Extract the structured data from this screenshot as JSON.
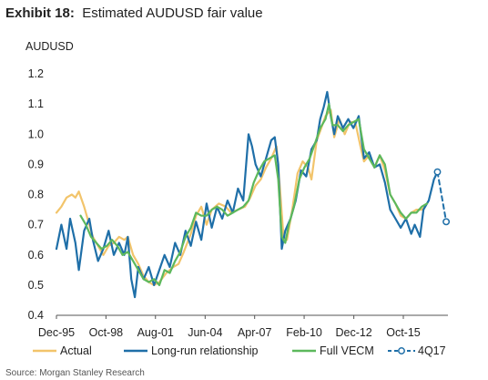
{
  "header": {
    "exhibit": "Exhibit 18:",
    "title": "Estimated AUDUSD fair value"
  },
  "footer": {
    "source": "Source: Morgan Stanley Research"
  },
  "chart_data": {
    "type": "line",
    "title": "Estimated AUDUSD fair value",
    "ylabel": "AUDUSD",
    "xlabel": "",
    "ylim": [
      0.4,
      1.2
    ],
    "yticks": [
      "0.4",
      "0.5",
      "0.6",
      "0.7",
      "0.8",
      "0.9",
      "1.0",
      "1.1",
      "1.2"
    ],
    "xlim": [
      1995.92,
      2018.3
    ],
    "xticks": [
      {
        "label": "Dec-95",
        "x": 1995.92
      },
      {
        "label": "Oct-98",
        "x": 1998.75
      },
      {
        "label": "Aug-01",
        "x": 2001.58
      },
      {
        "label": "Jun-04",
        "x": 2004.42
      },
      {
        "label": "Apr-07",
        "x": 2007.25
      },
      {
        "label": "Feb-10",
        "x": 2010.08
      },
      {
        "label": "Dec-12",
        "x": 2012.92
      },
      {
        "label": "Oct-15",
        "x": 2015.75
      }
    ],
    "grid": false,
    "legend": "bottom",
    "series": [
      {
        "name": "Actual",
        "color": "#F2C46B",
        "style": "solid",
        "points": [
          [
            1995.92,
            0.74
          ],
          [
            1996.2,
            0.76
          ],
          [
            1996.5,
            0.79
          ],
          [
            1996.8,
            0.8
          ],
          [
            1997.0,
            0.79
          ],
          [
            1997.2,
            0.81
          ],
          [
            1997.5,
            0.76
          ],
          [
            1997.8,
            0.7
          ],
          [
            1998.0,
            0.66
          ],
          [
            1998.3,
            0.63
          ],
          [
            1998.6,
            0.6
          ],
          [
            1998.9,
            0.63
          ],
          [
            1999.2,
            0.64
          ],
          [
            1999.5,
            0.66
          ],
          [
            1999.8,
            0.65
          ],
          [
            2000.0,
            0.66
          ],
          [
            2000.3,
            0.6
          ],
          [
            2000.6,
            0.57
          ],
          [
            2000.9,
            0.53
          ],
          [
            2001.2,
            0.51
          ],
          [
            2001.5,
            0.5
          ],
          [
            2001.8,
            0.51
          ],
          [
            2002.2,
            0.54
          ],
          [
            2002.6,
            0.56
          ],
          [
            2002.9,
            0.57
          ],
          [
            2003.2,
            0.61
          ],
          [
            2003.6,
            0.67
          ],
          [
            2003.9,
            0.73
          ],
          [
            2004.2,
            0.76
          ],
          [
            2004.5,
            0.7
          ],
          [
            2004.8,
            0.75
          ],
          [
            2005.2,
            0.77
          ],
          [
            2005.6,
            0.76
          ],
          [
            2005.9,
            0.74
          ],
          [
            2006.3,
            0.75
          ],
          [
            2006.7,
            0.76
          ],
          [
            2007.0,
            0.79
          ],
          [
            2007.3,
            0.83
          ],
          [
            2007.6,
            0.85
          ],
          [
            2007.9,
            0.89
          ],
          [
            2008.2,
            0.92
          ],
          [
            2008.5,
            0.96
          ],
          [
            2008.7,
            0.82
          ],
          [
            2008.9,
            0.66
          ],
          [
            2009.1,
            0.65
          ],
          [
            2009.4,
            0.75
          ],
          [
            2009.7,
            0.87
          ],
          [
            2010.0,
            0.91
          ],
          [
            2010.3,
            0.89
          ],
          [
            2010.5,
            0.85
          ],
          [
            2010.8,
            0.98
          ],
          [
            2011.0,
            1.01
          ],
          [
            2011.3,
            1.06
          ],
          [
            2011.6,
            1.08
          ],
          [
            2011.8,
            0.99
          ],
          [
            2012.1,
            1.05
          ],
          [
            2012.4,
            1.0
          ],
          [
            2012.7,
            1.04
          ],
          [
            2013.0,
            1.04
          ],
          [
            2013.3,
            0.96
          ],
          [
            2013.5,
            0.91
          ],
          [
            2013.8,
            0.93
          ],
          [
            2014.1,
            0.89
          ],
          [
            2014.4,
            0.93
          ],
          [
            2014.7,
            0.88
          ],
          [
            2015.0,
            0.8
          ],
          [
            2015.3,
            0.77
          ],
          [
            2015.6,
            0.73
          ],
          [
            2015.9,
            0.72
          ],
          [
            2016.2,
            0.74
          ],
          [
            2016.5,
            0.75
          ],
          [
            2016.8,
            0.75
          ],
          [
            2017.0,
            0.76
          ]
        ]
      },
      {
        "name": "Long-run relationship",
        "color": "#1F6FA8",
        "style": "solid",
        "points": [
          [
            1995.92,
            0.62
          ],
          [
            1996.2,
            0.7
          ],
          [
            1996.5,
            0.62
          ],
          [
            1996.7,
            0.72
          ],
          [
            1997.0,
            0.64
          ],
          [
            1997.2,
            0.55
          ],
          [
            1997.5,
            0.68
          ],
          [
            1997.8,
            0.72
          ],
          [
            1998.0,
            0.65
          ],
          [
            1998.3,
            0.58
          ],
          [
            1998.6,
            0.62
          ],
          [
            1998.9,
            0.68
          ],
          [
            1999.2,
            0.6
          ],
          [
            1999.5,
            0.64
          ],
          [
            1999.8,
            0.6
          ],
          [
            2000.0,
            0.66
          ],
          [
            2000.2,
            0.52
          ],
          [
            2000.4,
            0.46
          ],
          [
            2000.6,
            0.56
          ],
          [
            2000.9,
            0.52
          ],
          [
            2001.2,
            0.56
          ],
          [
            2001.5,
            0.5
          ],
          [
            2001.8,
            0.55
          ],
          [
            2002.1,
            0.6
          ],
          [
            2002.4,
            0.56
          ],
          [
            2002.7,
            0.64
          ],
          [
            2003.0,
            0.6
          ],
          [
            2003.3,
            0.68
          ],
          [
            2003.6,
            0.63
          ],
          [
            2003.9,
            0.71
          ],
          [
            2004.2,
            0.65
          ],
          [
            2004.5,
            0.77
          ],
          [
            2004.8,
            0.69
          ],
          [
            2005.1,
            0.76
          ],
          [
            2005.4,
            0.72
          ],
          [
            2005.7,
            0.78
          ],
          [
            2006.0,
            0.74
          ],
          [
            2006.3,
            0.82
          ],
          [
            2006.6,
            0.78
          ],
          [
            2006.9,
            1.0
          ],
          [
            2007.1,
            0.96
          ],
          [
            2007.3,
            0.9
          ],
          [
            2007.6,
            0.86
          ],
          [
            2007.9,
            0.92
          ],
          [
            2008.2,
            0.98
          ],
          [
            2008.4,
            0.99
          ],
          [
            2008.6,
            0.9
          ],
          [
            2008.8,
            0.62
          ],
          [
            2009.0,
            0.68
          ],
          [
            2009.3,
            0.72
          ],
          [
            2009.6,
            0.78
          ],
          [
            2009.9,
            0.88
          ],
          [
            2010.2,
            0.86
          ],
          [
            2010.5,
            0.95
          ],
          [
            2010.8,
            0.98
          ],
          [
            2011.0,
            1.05
          ],
          [
            2011.2,
            1.09
          ],
          [
            2011.4,
            1.14
          ],
          [
            2011.6,
            1.06
          ],
          [
            2011.8,
            1.0
          ],
          [
            2012.0,
            1.06
          ],
          [
            2012.3,
            1.02
          ],
          [
            2012.6,
            1.05
          ],
          [
            2012.9,
            1.02
          ],
          [
            2013.2,
            1.06
          ],
          [
            2013.5,
            0.92
          ],
          [
            2013.8,
            0.94
          ],
          [
            2014.1,
            0.89
          ],
          [
            2014.4,
            0.9
          ],
          [
            2014.7,
            0.84
          ],
          [
            2015.0,
            0.75
          ],
          [
            2015.3,
            0.72
          ],
          [
            2015.6,
            0.69
          ],
          [
            2015.9,
            0.72
          ],
          [
            2016.2,
            0.67
          ],
          [
            2016.4,
            0.7
          ],
          [
            2016.7,
            0.66
          ],
          [
            2016.9,
            0.75
          ],
          [
            2017.2,
            0.78
          ],
          [
            2017.5,
            0.85
          ],
          [
            2017.7,
            0.875
          ]
        ]
      },
      {
        "name": "Full VECM",
        "color": "#5CB85C",
        "style": "solid",
        "points": [
          [
            1997.3,
            0.73
          ],
          [
            1997.6,
            0.7
          ],
          [
            1997.9,
            0.66
          ],
          [
            1998.2,
            0.64
          ],
          [
            1998.5,
            0.62
          ],
          [
            1998.8,
            0.63
          ],
          [
            1999.1,
            0.65
          ],
          [
            1999.4,
            0.63
          ],
          [
            1999.7,
            0.6
          ],
          [
            2000.0,
            0.61
          ],
          [
            2000.3,
            0.58
          ],
          [
            2000.6,
            0.55
          ],
          [
            2000.9,
            0.52
          ],
          [
            2001.2,
            0.51
          ],
          [
            2001.5,
            0.52
          ],
          [
            2001.8,
            0.5
          ],
          [
            2002.1,
            0.55
          ],
          [
            2002.4,
            0.54
          ],
          [
            2002.7,
            0.58
          ],
          [
            2003.0,
            0.61
          ],
          [
            2003.3,
            0.66
          ],
          [
            2003.6,
            0.69
          ],
          [
            2003.9,
            0.74
          ],
          [
            2004.2,
            0.73
          ],
          [
            2004.5,
            0.73
          ],
          [
            2004.8,
            0.75
          ],
          [
            2005.1,
            0.76
          ],
          [
            2005.4,
            0.75
          ],
          [
            2005.7,
            0.73
          ],
          [
            2006.0,
            0.74
          ],
          [
            2006.3,
            0.75
          ],
          [
            2006.6,
            0.76
          ],
          [
            2006.9,
            0.78
          ],
          [
            2007.2,
            0.84
          ],
          [
            2007.5,
            0.88
          ],
          [
            2007.8,
            0.91
          ],
          [
            2008.1,
            0.92
          ],
          [
            2008.4,
            0.93
          ],
          [
            2008.6,
            0.85
          ],
          [
            2008.8,
            0.66
          ],
          [
            2009.0,
            0.64
          ],
          [
            2009.2,
            0.7
          ],
          [
            2009.5,
            0.76
          ],
          [
            2009.8,
            0.85
          ],
          [
            2010.1,
            0.89
          ],
          [
            2010.4,
            0.92
          ],
          [
            2010.7,
            0.97
          ],
          [
            2011.0,
            1.02
          ],
          [
            2011.3,
            1.05
          ],
          [
            2011.5,
            1.1
          ],
          [
            2011.7,
            1.03
          ],
          [
            2012.0,
            1.03
          ],
          [
            2012.3,
            1.01
          ],
          [
            2012.6,
            1.03
          ],
          [
            2012.9,
            1.04
          ],
          [
            2013.2,
            1.05
          ],
          [
            2013.5,
            0.95
          ],
          [
            2013.8,
            0.92
          ],
          [
            2014.1,
            0.89
          ],
          [
            2014.4,
            0.93
          ],
          [
            2014.7,
            0.9
          ],
          [
            2015.0,
            0.8
          ],
          [
            2015.3,
            0.77
          ],
          [
            2015.6,
            0.74
          ],
          [
            2015.9,
            0.72
          ],
          [
            2016.2,
            0.74
          ],
          [
            2016.5,
            0.74
          ],
          [
            2016.8,
            0.76
          ],
          [
            2017.1,
            0.77
          ]
        ]
      },
      {
        "name": "4Q17",
        "color": "#1F6FA8",
        "style": "dashed",
        "points": [
          [
            2017.7,
            0.875
          ],
          [
            2018.2,
            0.71
          ]
        ]
      }
    ]
  }
}
